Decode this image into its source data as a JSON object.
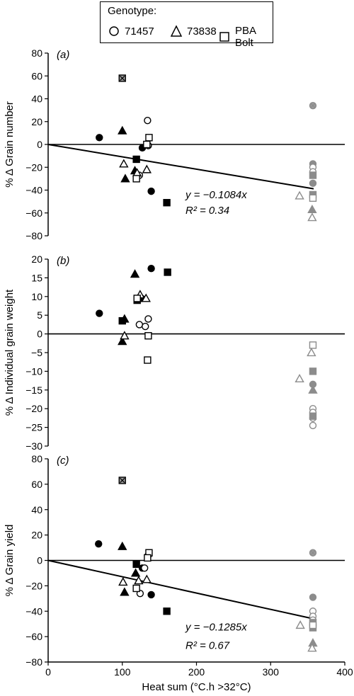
{
  "legend": {
    "title": "Genotype:",
    "items": [
      {
        "label": "71457",
        "symbol": "circle"
      },
      {
        "label": "73838",
        "symbol": "triangle"
      },
      {
        "label": "PBA Bolt",
        "symbol": "square"
      }
    ]
  },
  "x_axis": {
    "label": "Heat sum (°C.h >32°C)",
    "range": [
      0,
      400
    ],
    "ticks": [
      0,
      100,
      200,
      300,
      400
    ]
  },
  "colors": {
    "filled": "#000000",
    "grey": "#8c8c8c",
    "line": "#000000"
  },
  "chart_data": [
    {
      "type": "scatter",
      "panel_label": "(a)",
      "ylabel": "% Δ Grain number",
      "ylim": [
        -80,
        80
      ],
      "yticks": [
        -80,
        -60,
        -40,
        -20,
        0,
        20,
        40,
        60,
        80
      ],
      "trendline": {
        "slope": -0.1084,
        "x_end": 358
      },
      "equation": "y = −0.1084x",
      "r2": "R² = 0.34",
      "points": [
        {
          "x": 69,
          "y": 6,
          "g": "71457",
          "fill": "filled"
        },
        {
          "x": 127,
          "y": -3,
          "g": "71457",
          "fill": "filled"
        },
        {
          "x": 139,
          "y": -41,
          "g": "71457",
          "fill": "filled"
        },
        {
          "x": 134,
          "y": 21,
          "g": "71457",
          "fill": "open"
        },
        {
          "x": 135,
          "y": -1,
          "g": "71457",
          "fill": "open"
        },
        {
          "x": 123,
          "y": -27,
          "g": "71457",
          "fill": "open"
        },
        {
          "x": 100,
          "y": 12,
          "g": "73838",
          "fill": "filled"
        },
        {
          "x": 104,
          "y": -30,
          "g": "73838",
          "fill": "filled"
        },
        {
          "x": 117,
          "y": -23,
          "g": "73838",
          "fill": "filled"
        },
        {
          "x": 102,
          "y": -17,
          "g": "73838",
          "fill": "open"
        },
        {
          "x": 120,
          "y": -25,
          "g": "73838",
          "fill": "open"
        },
        {
          "x": 133,
          "y": -22,
          "g": "73838",
          "fill": "open"
        },
        {
          "x": 100,
          "y": 58,
          "g": "PBA Bolt",
          "fill": "crossed"
        },
        {
          "x": 119,
          "y": -13,
          "g": "PBA Bolt",
          "fill": "filled"
        },
        {
          "x": 160,
          "y": -51,
          "g": "PBA Bolt",
          "fill": "filled"
        },
        {
          "x": 119,
          "y": -30,
          "g": "PBA Bolt",
          "fill": "open"
        },
        {
          "x": 136,
          "y": 6,
          "g": "PBA Bolt",
          "fill": "open"
        },
        {
          "x": 133,
          "y": 0,
          "g": "PBA Bolt",
          "fill": "open"
        },
        {
          "x": 357,
          "y": 34,
          "g": "71457",
          "fill": "greycrossed"
        },
        {
          "x": 357,
          "y": -17,
          "g": "71457",
          "fill": "greyfilled"
        },
        {
          "x": 357,
          "y": -34,
          "g": "71457",
          "fill": "greyfilled"
        },
        {
          "x": 357,
          "y": -20,
          "g": "71457",
          "fill": "greyopen"
        },
        {
          "x": 357,
          "y": -24,
          "g": "71457",
          "fill": "greyopen"
        },
        {
          "x": 356,
          "y": -57,
          "g": "73838",
          "fill": "greyfilled"
        },
        {
          "x": 339,
          "y": -45,
          "g": "73838",
          "fill": "greyopen"
        },
        {
          "x": 356,
          "y": -64,
          "g": "73838",
          "fill": "greyopen"
        },
        {
          "x": 357,
          "y": -27,
          "g": "PBA Bolt",
          "fill": "greyfilled"
        },
        {
          "x": 357,
          "y": -44,
          "g": "PBA Bolt",
          "fill": "greyfilled"
        },
        {
          "x": 357,
          "y": -47,
          "g": "PBA Bolt",
          "fill": "greyopen"
        }
      ]
    },
    {
      "type": "scatter",
      "panel_label": "(b)",
      "ylabel": "% Δ Individual grain weight",
      "ylim": [
        -30,
        20
      ],
      "yticks": [
        -30,
        -25,
        -20,
        -15,
        -10,
        -5,
        0,
        5,
        10,
        15,
        20
      ],
      "trendline": null,
      "equation": "",
      "r2": "",
      "points": [
        {
          "x": 69,
          "y": 5.5,
          "g": "71457",
          "fill": "filled"
        },
        {
          "x": 126,
          "y": 9.5,
          "g": "71457",
          "fill": "filled"
        },
        {
          "x": 139,
          "y": 17.5,
          "g": "71457",
          "fill": "filled"
        },
        {
          "x": 123,
          "y": 2.5,
          "g": "71457",
          "fill": "open"
        },
        {
          "x": 131,
          "y": 2.0,
          "g": "71457",
          "fill": "open"
        },
        {
          "x": 135,
          "y": 4.0,
          "g": "71457",
          "fill": "open"
        },
        {
          "x": 117,
          "y": 16.0,
          "g": "73838",
          "fill": "filled"
        },
        {
          "x": 103,
          "y": 4.0,
          "g": "73838",
          "fill": "filled"
        },
        {
          "x": 100,
          "y": -2.0,
          "g": "73838",
          "fill": "filled"
        },
        {
          "x": 124,
          "y": 10.5,
          "g": "73838",
          "fill": "open"
        },
        {
          "x": 132,
          "y": 9.5,
          "g": "73838",
          "fill": "open"
        },
        {
          "x": 103,
          "y": -0.5,
          "g": "73838",
          "fill": "open"
        },
        {
          "x": 100,
          "y": 3.5,
          "g": "PBA Bolt",
          "fill": "filled"
        },
        {
          "x": 120,
          "y": 9.0,
          "g": "PBA Bolt",
          "fill": "filled"
        },
        {
          "x": 161,
          "y": 16.5,
          "g": "PBA Bolt",
          "fill": "filled"
        },
        {
          "x": 120,
          "y": 9.5,
          "g": "PBA Bolt",
          "fill": "open"
        },
        {
          "x": 135,
          "y": -0.5,
          "g": "PBA Bolt",
          "fill": "open"
        },
        {
          "x": 134,
          "y": -7.0,
          "g": "PBA Bolt",
          "fill": "open"
        },
        {
          "x": 357,
          "y": -13.5,
          "g": "71457",
          "fill": "greyfilled"
        },
        {
          "x": 357,
          "y": -20.0,
          "g": "71457",
          "fill": "greyopen"
        },
        {
          "x": 357,
          "y": -21.0,
          "g": "71457",
          "fill": "greyopen"
        },
        {
          "x": 357,
          "y": -22.5,
          "g": "71457",
          "fill": "greyopen"
        },
        {
          "x": 357,
          "y": -24.5,
          "g": "71457",
          "fill": "greyopen"
        },
        {
          "x": 357,
          "y": -15.0,
          "g": "73838",
          "fill": "greyfilled"
        },
        {
          "x": 339,
          "y": -12.0,
          "g": "73838",
          "fill": "greyopen"
        },
        {
          "x": 355,
          "y": -5.0,
          "g": "73838",
          "fill": "greyopen"
        },
        {
          "x": 357,
          "y": -10.0,
          "g": "PBA Bolt",
          "fill": "greyfilled"
        },
        {
          "x": 357,
          "y": -3.0,
          "g": "PBA Bolt",
          "fill": "greyopen"
        },
        {
          "x": 357,
          "y": -22.0,
          "g": "PBA Bolt",
          "fill": "greyfilled"
        }
      ]
    },
    {
      "type": "scatter",
      "panel_label": "(c)",
      "ylabel": "% Δ Grain yield",
      "ylim": [
        -80,
        80
      ],
      "yticks": [
        -80,
        -60,
        -40,
        -20,
        0,
        20,
        40,
        60,
        80
      ],
      "trendline": {
        "slope": -0.1285,
        "x_end": 358
      },
      "equation": "y = −0.1285x",
      "r2": "R² = 0.67",
      "points": [
        {
          "x": 68,
          "y": 13,
          "g": "71457",
          "fill": "filled"
        },
        {
          "x": 127,
          "y": -6,
          "g": "71457",
          "fill": "filled"
        },
        {
          "x": 139,
          "y": -27,
          "g": "71457",
          "fill": "filled"
        },
        {
          "x": 124,
          "y": -26,
          "g": "71457",
          "fill": "open"
        },
        {
          "x": 135,
          "y": 4,
          "g": "71457",
          "fill": "open"
        },
        {
          "x": 130,
          "y": -6,
          "g": "71457",
          "fill": "open"
        },
        {
          "x": 100,
          "y": 11,
          "g": "73838",
          "fill": "filled"
        },
        {
          "x": 103,
          "y": -25,
          "g": "73838",
          "fill": "filled"
        },
        {
          "x": 118,
          "y": -10,
          "g": "73838",
          "fill": "filled"
        },
        {
          "x": 101,
          "y": -17,
          "g": "73838",
          "fill": "open"
        },
        {
          "x": 122,
          "y": -16,
          "g": "73838",
          "fill": "open"
        },
        {
          "x": 133,
          "y": -15,
          "g": "73838",
          "fill": "open"
        },
        {
          "x": 100,
          "y": 63,
          "g": "PBA Bolt",
          "fill": "crossed"
        },
        {
          "x": 119,
          "y": -3,
          "g": "PBA Bolt",
          "fill": "filled"
        },
        {
          "x": 160,
          "y": -40,
          "g": "PBA Bolt",
          "fill": "filled"
        },
        {
          "x": 119,
          "y": -22,
          "g": "PBA Bolt",
          "fill": "open"
        },
        {
          "x": 136,
          "y": 6,
          "g": "PBA Bolt",
          "fill": "open"
        },
        {
          "x": 134,
          "y": 2,
          "g": "PBA Bolt",
          "fill": "open"
        },
        {
          "x": 357,
          "y": 6,
          "g": "71457",
          "fill": "greycrossed"
        },
        {
          "x": 357,
          "y": -29,
          "g": "71457",
          "fill": "greyfilled"
        },
        {
          "x": 357,
          "y": -40,
          "g": "71457",
          "fill": "greyopen"
        },
        {
          "x": 357,
          "y": -44,
          "g": "71457",
          "fill": "greyopen"
        },
        {
          "x": 357,
          "y": -47,
          "g": "71457",
          "fill": "greyopen"
        },
        {
          "x": 357,
          "y": -65,
          "g": "73838",
          "fill": "greyfilled"
        },
        {
          "x": 340,
          "y": -51,
          "g": "73838",
          "fill": "greyopen"
        },
        {
          "x": 356,
          "y": -69,
          "g": "73838",
          "fill": "greyopen"
        },
        {
          "x": 357,
          "y": -49,
          "g": "PBA Bolt",
          "fill": "greyfilled"
        },
        {
          "x": 357,
          "y": -53,
          "g": "PBA Bolt",
          "fill": "greyfilled"
        },
        {
          "x": 357,
          "y": -51,
          "g": "PBA Bolt",
          "fill": "greyopen"
        }
      ]
    }
  ]
}
